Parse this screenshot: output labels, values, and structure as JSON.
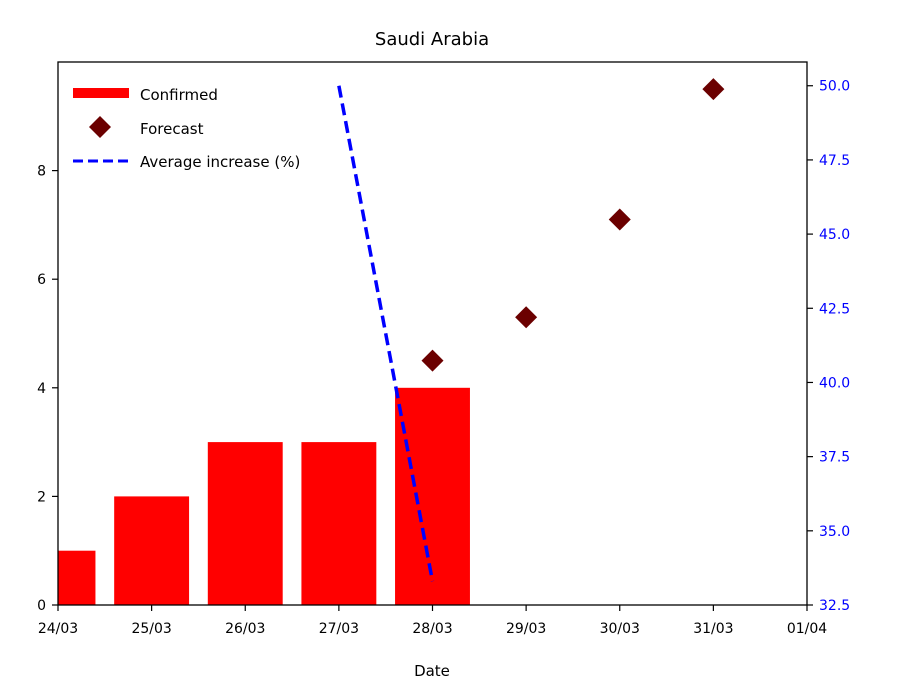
{
  "chart_data": {
    "type": "bar",
    "title": "Saudi Arabia",
    "xlabel": "Date",
    "ylabel": "",
    "y2label": "",
    "x_ticks": [
      "24/03",
      "25/03",
      "26/03",
      "27/03",
      "28/03",
      "29/03",
      "30/03",
      "31/03",
      "01/04"
    ],
    "xlim": [
      "24/03",
      "01/04"
    ],
    "ylim": [
      0,
      10
    ],
    "y_ticks": [
      0,
      2,
      4,
      6,
      8
    ],
    "y2lim": [
      32.5,
      50.8
    ],
    "y2_ticks": [
      "32.5",
      "35.0",
      "37.5",
      "40.0",
      "42.5",
      "45.0",
      "47.5",
      "50.0"
    ],
    "legend_position": "top-left",
    "colors": {
      "confirmed": "#ff0000",
      "forecast": "#6b0000",
      "average_increase": "#0000ff",
      "right_axis": "#0000ff"
    },
    "series": [
      {
        "name": "Confirmed",
        "type": "bar",
        "axis": "left",
        "x": [
          "24/03",
          "25/03",
          "26/03",
          "27/03",
          "28/03"
        ],
        "values": [
          1,
          2,
          3,
          3,
          4
        ]
      },
      {
        "name": "Forecast",
        "type": "scatter",
        "marker": "diamond",
        "axis": "left",
        "x": [
          "28/03",
          "29/03",
          "30/03",
          "31/03"
        ],
        "values": [
          4.5,
          5.3,
          7.1,
          9.5
        ]
      },
      {
        "name": "Average increase (%)",
        "type": "line",
        "style": "dashed",
        "axis": "right",
        "x": [
          "27/03",
          "28/03"
        ],
        "values": [
          50.0,
          33.3
        ]
      }
    ]
  }
}
